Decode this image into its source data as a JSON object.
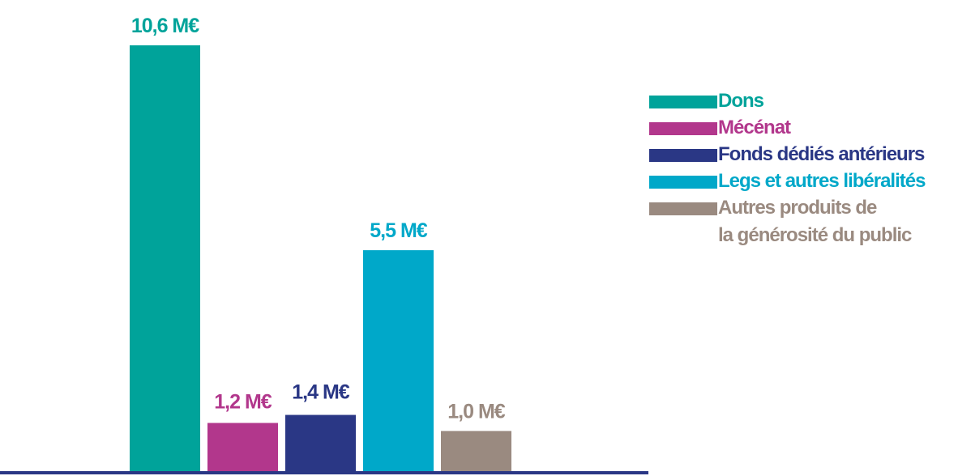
{
  "chart_data": {
    "type": "bar",
    "categories": [
      "Dons",
      "Mécénat",
      "Fonds dédiés antérieurs",
      "Legs et autres libéralités",
      "Autres produits de la générosité du public"
    ],
    "values": [
      10.6,
      1.2,
      1.4,
      5.5,
      1.0
    ],
    "value_labels": [
      "10,6 M€",
      "1,2 M€",
      "1,4 M€",
      "5,5 M€",
      "1,0 M€"
    ],
    "colors": [
      "#00a39a",
      "#b2378c",
      "#2a3785",
      "#00a8c9",
      "#9a8a80"
    ],
    "axis_color": "#2a3785",
    "ylim": [
      0,
      10.6
    ],
    "grid": false,
    "legend_position": "right",
    "legend": [
      {
        "label": "Dons",
        "color": "#00a39a"
      },
      {
        "label": "Mécénat",
        "color": "#b2378c"
      },
      {
        "label": "Fonds dédiés antérieurs",
        "color": "#2a3785"
      },
      {
        "label": "Legs et autres libéralités",
        "color": "#00a8c9"
      },
      {
        "label_line1": "Autres produits de",
        "label_line2": "la générosité du public",
        "color": "#9a8a80"
      }
    ]
  }
}
